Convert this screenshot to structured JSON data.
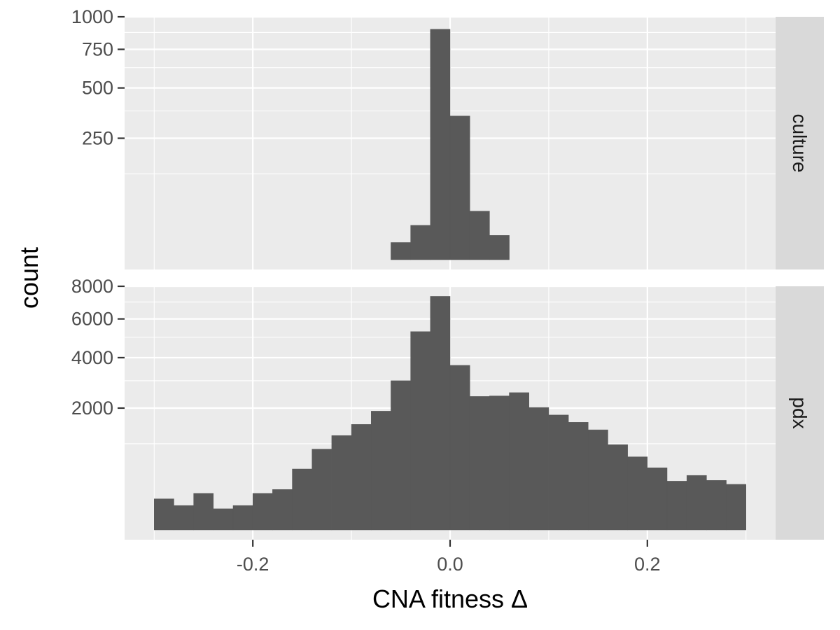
{
  "chart_data": {
    "type": "bar",
    "subtype": "faceted-histogram",
    "xlabel": "CNA fitness Δ",
    "ylabel": "count",
    "xlim": [
      -0.33,
      0.33
    ],
    "x_ticks": [
      {
        "value": -0.2,
        "label": "-0.2"
      },
      {
        "value": 0.0,
        "label": "0.0"
      },
      {
        "value": 0.2,
        "label": "0.2"
      }
    ],
    "bin_width": 0.02,
    "y_scale": "sqrt",
    "grid": true,
    "colors": {
      "bar": "#595959",
      "panel": "#ebebeb",
      "strip": "#d9d9d9",
      "grid": "#ffffff"
    },
    "facets": [
      {
        "strip_label": "culture",
        "ylim": [
          0,
          1000
        ],
        "y_ticks": [
          250,
          500,
          750,
          1000
        ],
        "bins": [
          {
            "x": -0.05,
            "count": 5
          },
          {
            "x": -0.03,
            "count": 20
          },
          {
            "x": -0.01,
            "count": 900
          },
          {
            "x": 0.01,
            "count": 350
          },
          {
            "x": 0.03,
            "count": 40
          },
          {
            "x": 0.05,
            "count": 10
          }
        ]
      },
      {
        "strip_label": "pdx",
        "ylim": [
          0,
          8000
        ],
        "y_ticks": [
          2000,
          4000,
          6000,
          8000
        ],
        "bins": [
          {
            "x": -0.29,
            "count": 130
          },
          {
            "x": -0.27,
            "count": 80
          },
          {
            "x": -0.25,
            "count": 180
          },
          {
            "x": -0.23,
            "count": 60
          },
          {
            "x": -0.21,
            "count": 80
          },
          {
            "x": -0.19,
            "count": 180
          },
          {
            "x": -0.17,
            "count": 220
          },
          {
            "x": -0.15,
            "count": 500
          },
          {
            "x": -0.13,
            "count": 880
          },
          {
            "x": -0.11,
            "count": 1200
          },
          {
            "x": -0.09,
            "count": 1500
          },
          {
            "x": -0.07,
            "count": 1900
          },
          {
            "x": -0.05,
            "count": 3000
          },
          {
            "x": -0.03,
            "count": 5300
          },
          {
            "x": -0.01,
            "count": 7350
          },
          {
            "x": 0.01,
            "count": 3650
          },
          {
            "x": 0.03,
            "count": 2400
          },
          {
            "x": 0.05,
            "count": 2420
          },
          {
            "x": 0.07,
            "count": 2540
          },
          {
            "x": 0.09,
            "count": 2020
          },
          {
            "x": 0.11,
            "count": 1780
          },
          {
            "x": 0.13,
            "count": 1560
          },
          {
            "x": 0.15,
            "count": 1350
          },
          {
            "x": 0.17,
            "count": 980
          },
          {
            "x": 0.19,
            "count": 720
          },
          {
            "x": 0.21,
            "count": 520
          },
          {
            "x": 0.23,
            "count": 320
          },
          {
            "x": 0.25,
            "count": 400
          },
          {
            "x": 0.27,
            "count": 330
          },
          {
            "x": 0.29,
            "count": 280
          }
        ]
      }
    ]
  }
}
